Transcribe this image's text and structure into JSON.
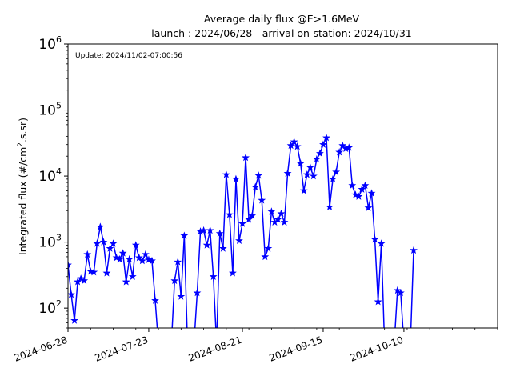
{
  "chart_data": {
    "type": "line",
    "title": "Average daily flux @E>1.6MeV",
    "subtitle": "launch : 2024/06/28 - arrival on-station: 2024/10/31",
    "ylabel_main": "Integrated flux (#/cm",
    "ylabel_sup": "2",
    "ylabel_tail": ".s.sr)",
    "annotation": "Update: 2024/11/02-07:00:56",
    "y_scale": "log",
    "ylim": [
      50,
      1000000
    ],
    "xlim": [
      "2024-06-28",
      "2024-11-08"
    ],
    "grid": false,
    "color": "#0000ff",
    "marker": "star",
    "x_ticks": [
      "2024-06-28",
      "2024-07-23",
      "2024-08-21",
      "2024-09-15",
      "2024-10-10"
    ],
    "y_ticks": [
      {
        "value": 100,
        "base": "10",
        "exp": "2"
      },
      {
        "value": 1000,
        "base": "10",
        "exp": "3"
      },
      {
        "value": 10000,
        "base": "10",
        "exp": "4"
      },
      {
        "value": 100000,
        "base": "10",
        "exp": "5"
      },
      {
        "value": 1000000,
        "base": "10",
        "exp": "6"
      }
    ],
    "series": [
      {
        "points": [
          [
            "2024-06-28",
            450
          ],
          [
            "2024-06-29",
            160
          ],
          [
            "2024-06-30",
            65
          ],
          [
            "2024-07-01",
            250
          ],
          [
            "2024-07-02",
            280
          ],
          [
            "2024-07-03",
            260
          ],
          [
            "2024-07-04",
            650
          ],
          [
            "2024-07-05",
            360
          ],
          [
            "2024-07-06",
            350
          ],
          [
            "2024-07-07",
            950
          ],
          [
            "2024-07-08",
            1700
          ],
          [
            "2024-07-09",
            1000
          ],
          [
            "2024-07-10",
            340
          ],
          [
            "2024-07-11",
            800
          ],
          [
            "2024-07-12",
            950
          ],
          [
            "2024-07-13",
            580
          ],
          [
            "2024-07-14",
            550
          ],
          [
            "2024-07-15",
            680
          ],
          [
            "2024-07-16",
            250
          ],
          [
            "2024-07-17",
            550
          ],
          [
            "2024-07-18",
            300
          ],
          [
            "2024-07-19",
            900
          ],
          [
            "2024-07-20",
            580
          ],
          [
            "2024-07-21",
            520
          ],
          [
            "2024-07-22",
            650
          ],
          [
            "2024-07-23",
            540
          ],
          [
            "2024-07-24",
            520
          ],
          [
            "2024-07-25",
            130
          ],
          [
            "2024-07-26",
            null
          ],
          [
            "2024-07-27",
            null
          ],
          [
            "2024-07-28",
            null
          ],
          [
            "2024-07-29",
            null
          ],
          [
            "2024-07-30",
            null
          ],
          [
            "2024-07-31",
            260
          ],
          [
            "2024-08-01",
            500
          ],
          [
            "2024-08-02",
            150
          ],
          [
            "2024-08-03",
            1250
          ],
          [
            "2024-08-04",
            null
          ],
          [
            "2024-08-05",
            null
          ],
          [
            "2024-08-06",
            null
          ],
          [
            "2024-08-07",
            170
          ],
          [
            "2024-08-08",
            1450
          ],
          [
            "2024-08-09",
            1500
          ],
          [
            "2024-08-10",
            900
          ],
          [
            "2024-08-11",
            1500
          ],
          [
            "2024-08-12",
            300
          ],
          [
            "2024-08-13",
            null
          ],
          [
            "2024-08-14",
            1350
          ],
          [
            "2024-08-15",
            800
          ],
          [
            "2024-08-16",
            10500
          ],
          [
            "2024-08-17",
            2600
          ],
          [
            "2024-08-18",
            340
          ],
          [
            "2024-08-19",
            9000
          ],
          [
            "2024-08-20",
            1050
          ],
          [
            "2024-08-21",
            1900
          ],
          [
            "2024-08-22",
            19000
          ],
          [
            "2024-08-23",
            2200
          ],
          [
            "2024-08-24",
            2500
          ],
          [
            "2024-08-25",
            6800
          ],
          [
            "2024-08-26",
            10200
          ],
          [
            "2024-08-27",
            4300
          ],
          [
            "2024-08-28",
            600
          ],
          [
            "2024-08-29",
            800
          ],
          [
            "2024-08-30",
            2900
          ],
          [
            "2024-08-31",
            2000
          ],
          [
            "2024-09-01",
            2200
          ],
          [
            "2024-09-02",
            2700
          ],
          [
            "2024-09-03",
            2000
          ],
          [
            "2024-09-04",
            11000
          ],
          [
            "2024-09-05",
            29000
          ],
          [
            "2024-09-06",
            33000
          ],
          [
            "2024-09-07",
            28000
          ],
          [
            "2024-09-08",
            15500
          ],
          [
            "2024-09-09",
            6000
          ],
          [
            "2024-09-10",
            10500
          ],
          [
            "2024-09-11",
            13500
          ],
          [
            "2024-09-12",
            10000
          ],
          [
            "2024-09-13",
            18000
          ],
          [
            "2024-09-14",
            22000
          ],
          [
            "2024-09-15",
            30000
          ],
          [
            "2024-09-16",
            38000
          ],
          [
            "2024-09-17",
            3400
          ],
          [
            "2024-09-18",
            9000
          ],
          [
            "2024-09-19",
            11500
          ],
          [
            "2024-09-20",
            23000
          ],
          [
            "2024-09-21",
            29000
          ],
          [
            "2024-09-22",
            26000
          ],
          [
            "2024-09-23",
            27000
          ],
          [
            "2024-09-24",
            7200
          ],
          [
            "2024-09-25",
            5200
          ],
          [
            "2024-09-26",
            4900
          ],
          [
            "2024-09-27",
            6300
          ],
          [
            "2024-09-28",
            7200
          ],
          [
            "2024-09-29",
            3300
          ],
          [
            "2024-09-30",
            5500
          ],
          [
            "2024-10-01",
            1100
          ],
          [
            "2024-10-02",
            125
          ],
          [
            "2024-10-03",
            950
          ],
          [
            "2024-10-04",
            null
          ],
          [
            "2024-10-05",
            null
          ],
          [
            "2024-10-06",
            null
          ],
          [
            "2024-10-07",
            null
          ],
          [
            "2024-10-08",
            185
          ],
          [
            "2024-10-09",
            170
          ],
          [
            "2024-10-10",
            null
          ],
          [
            "2024-10-11",
            null
          ],
          [
            "2024-10-12",
            null
          ],
          [
            "2024-10-13",
            750
          ]
        ]
      }
    ]
  }
}
